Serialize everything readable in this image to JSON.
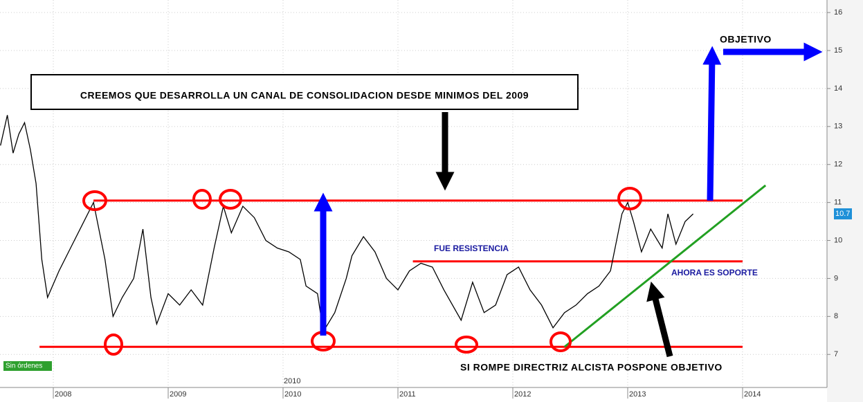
{
  "chart_data": {
    "type": "line",
    "x": [
      2007.54,
      2007.6,
      2007.65,
      2007.7,
      2007.75,
      2007.8,
      2007.85,
      2007.9,
      2007.95,
      2008.05,
      2008.15,
      2008.25,
      2008.35,
      2008.45,
      2008.52,
      2008.6,
      2008.7,
      2008.78,
      2008.85,
      2008.9,
      2009.0,
      2009.1,
      2009.2,
      2009.3,
      2009.4,
      2009.48,
      2009.55,
      2009.65,
      2009.75,
      2009.85,
      2009.95,
      2010.05,
      2010.15,
      2010.2,
      2010.3,
      2010.35,
      2010.45,
      2010.55,
      2010.6,
      2010.7,
      2010.8,
      2010.9,
      2011.0,
      2011.1,
      2011.2,
      2011.3,
      2011.4,
      2011.55,
      2011.65,
      2011.75,
      2011.85,
      2011.95,
      2012.05,
      2012.15,
      2012.25,
      2012.35,
      2012.45,
      2012.55,
      2012.65,
      2012.75,
      2012.85,
      2012.95,
      2013.0,
      2013.05,
      2013.12,
      2013.2,
      2013.3,
      2013.35,
      2013.42,
      2013.5,
      2013.57
    ],
    "series": [
      {
        "color": "#000000",
        "values": [
          12.5,
          13.3,
          12.3,
          12.8,
          13.1,
          12.4,
          11.5,
          9.5,
          8.5,
          9.2,
          9.8,
          10.4,
          11.0,
          9.5,
          8.0,
          8.5,
          9.0,
          10.3,
          8.5,
          7.8,
          8.6,
          8.3,
          8.7,
          8.3,
          9.8,
          10.9,
          10.2,
          10.9,
          10.6,
          10.0,
          9.8,
          9.7,
          9.5,
          8.8,
          8.6,
          7.6,
          8.1,
          9.0,
          9.6,
          10.1,
          9.7,
          9.0,
          8.7,
          9.2,
          9.4,
          9.3,
          8.7,
          7.9,
          8.9,
          8.1,
          8.3,
          9.1,
          9.3,
          8.7,
          8.3,
          7.7,
          8.1,
          8.3,
          8.6,
          8.8,
          9.2,
          10.7,
          11.0,
          10.5,
          9.7,
          10.3,
          9.8,
          10.7,
          9.9,
          10.5,
          10.7
        ]
      }
    ],
    "xlim": [
      2007.536,
      2014.735
    ],
    "xticks": [
      2008,
      2009,
      2010,
      2011,
      2012,
      2013,
      2014
    ],
    "ylim": [
      6.13,
      16.33
    ],
    "yticks": [
      7,
      8,
      9,
      10,
      11,
      12,
      13,
      14,
      15,
      16
    ],
    "last_value": 10.7,
    "grid": true,
    "levels": [
      {
        "color": "#ff0000",
        "x": [
          2008.35,
          2014.0
        ],
        "y": [
          11.05,
          11.05
        ]
      },
      {
        "color": "#ff0000",
        "x": [
          2011.13,
          2014.0
        ],
        "y": [
          9.45,
          9.45
        ]
      },
      {
        "color": "#ff0000",
        "x": [
          2007.88,
          2014.0
        ],
        "y": [
          7.2,
          7.2
        ]
      },
      {
        "color": "#22a022",
        "x": [
          2012.45,
          2014.2
        ],
        "y": [
          7.2,
          11.45
        ]
      }
    ],
    "annotations": {
      "main": "CREEMOS QUE DESARROLLA UN CANAL DE CONSOLIDACION DESDE MINIMOS DEL 2009",
      "target": "OBJETIVO",
      "was": "FUE RESISTENCIA",
      "now": "AHORA ES SOPORTE",
      "warning": "SI ROMPE DIRECTRIZ ALCISTA POSPONE OBJETIVO",
      "orders": "Sin órdenes",
      "year_marker": "2010"
    }
  }
}
